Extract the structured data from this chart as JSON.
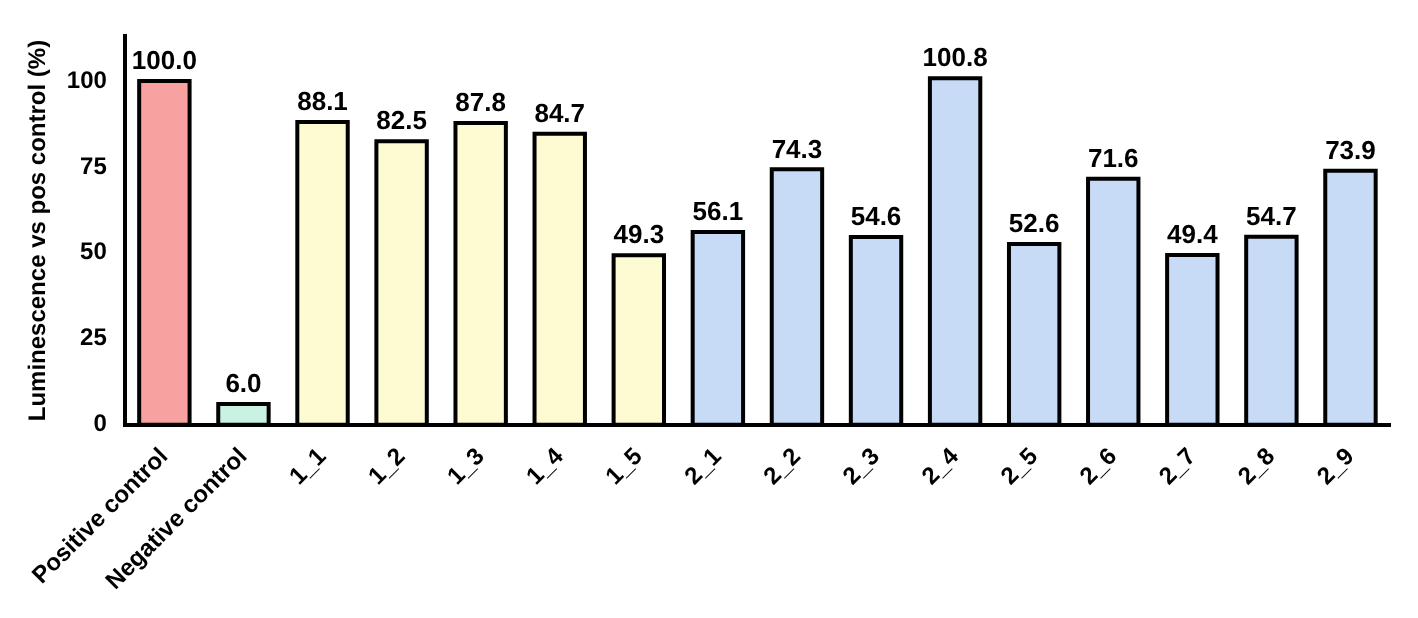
{
  "chart_data": {
    "type": "bar",
    "ylabel": "Luminescence vs pos control (%)",
    "categories": [
      "Positive control",
      "Negative control",
      "1_1",
      "1_2",
      "1_3",
      "1_4",
      "1_5",
      "2_1",
      "2_2",
      "2_3",
      "2_4",
      "2_5",
      "2_6",
      "2_7",
      "2_8",
      "2_9"
    ],
    "values": [
      100.0,
      6.0,
      88.1,
      82.5,
      87.8,
      84.7,
      49.3,
      56.1,
      74.3,
      54.6,
      100.8,
      52.6,
      71.6,
      49.4,
      54.7,
      73.9
    ],
    "colors": [
      "#f7a1a1",
      "#c9f2e2",
      "#fdfbd2",
      "#fdfbd2",
      "#fdfbd2",
      "#fdfbd2",
      "#fdfbd2",
      "#c7daf6",
      "#c7daf6",
      "#c7daf6",
      "#c7daf6",
      "#c7daf6",
      "#c7daf6",
      "#c7daf6",
      "#c7daf6",
      "#c7daf6"
    ],
    "value_labels": [
      "100.0",
      "6.0",
      "88.1",
      "82.5",
      "87.8",
      "84.7",
      "49.3",
      "56.1",
      "74.3",
      "54.6",
      "100.8",
      "52.6",
      "71.6",
      "49.4",
      "54.7",
      "73.9"
    ],
    "ylim": [
      0,
      113
    ],
    "yticks": [
      0,
      25,
      50,
      75,
      100
    ],
    "grid": false,
    "legend": false
  }
}
